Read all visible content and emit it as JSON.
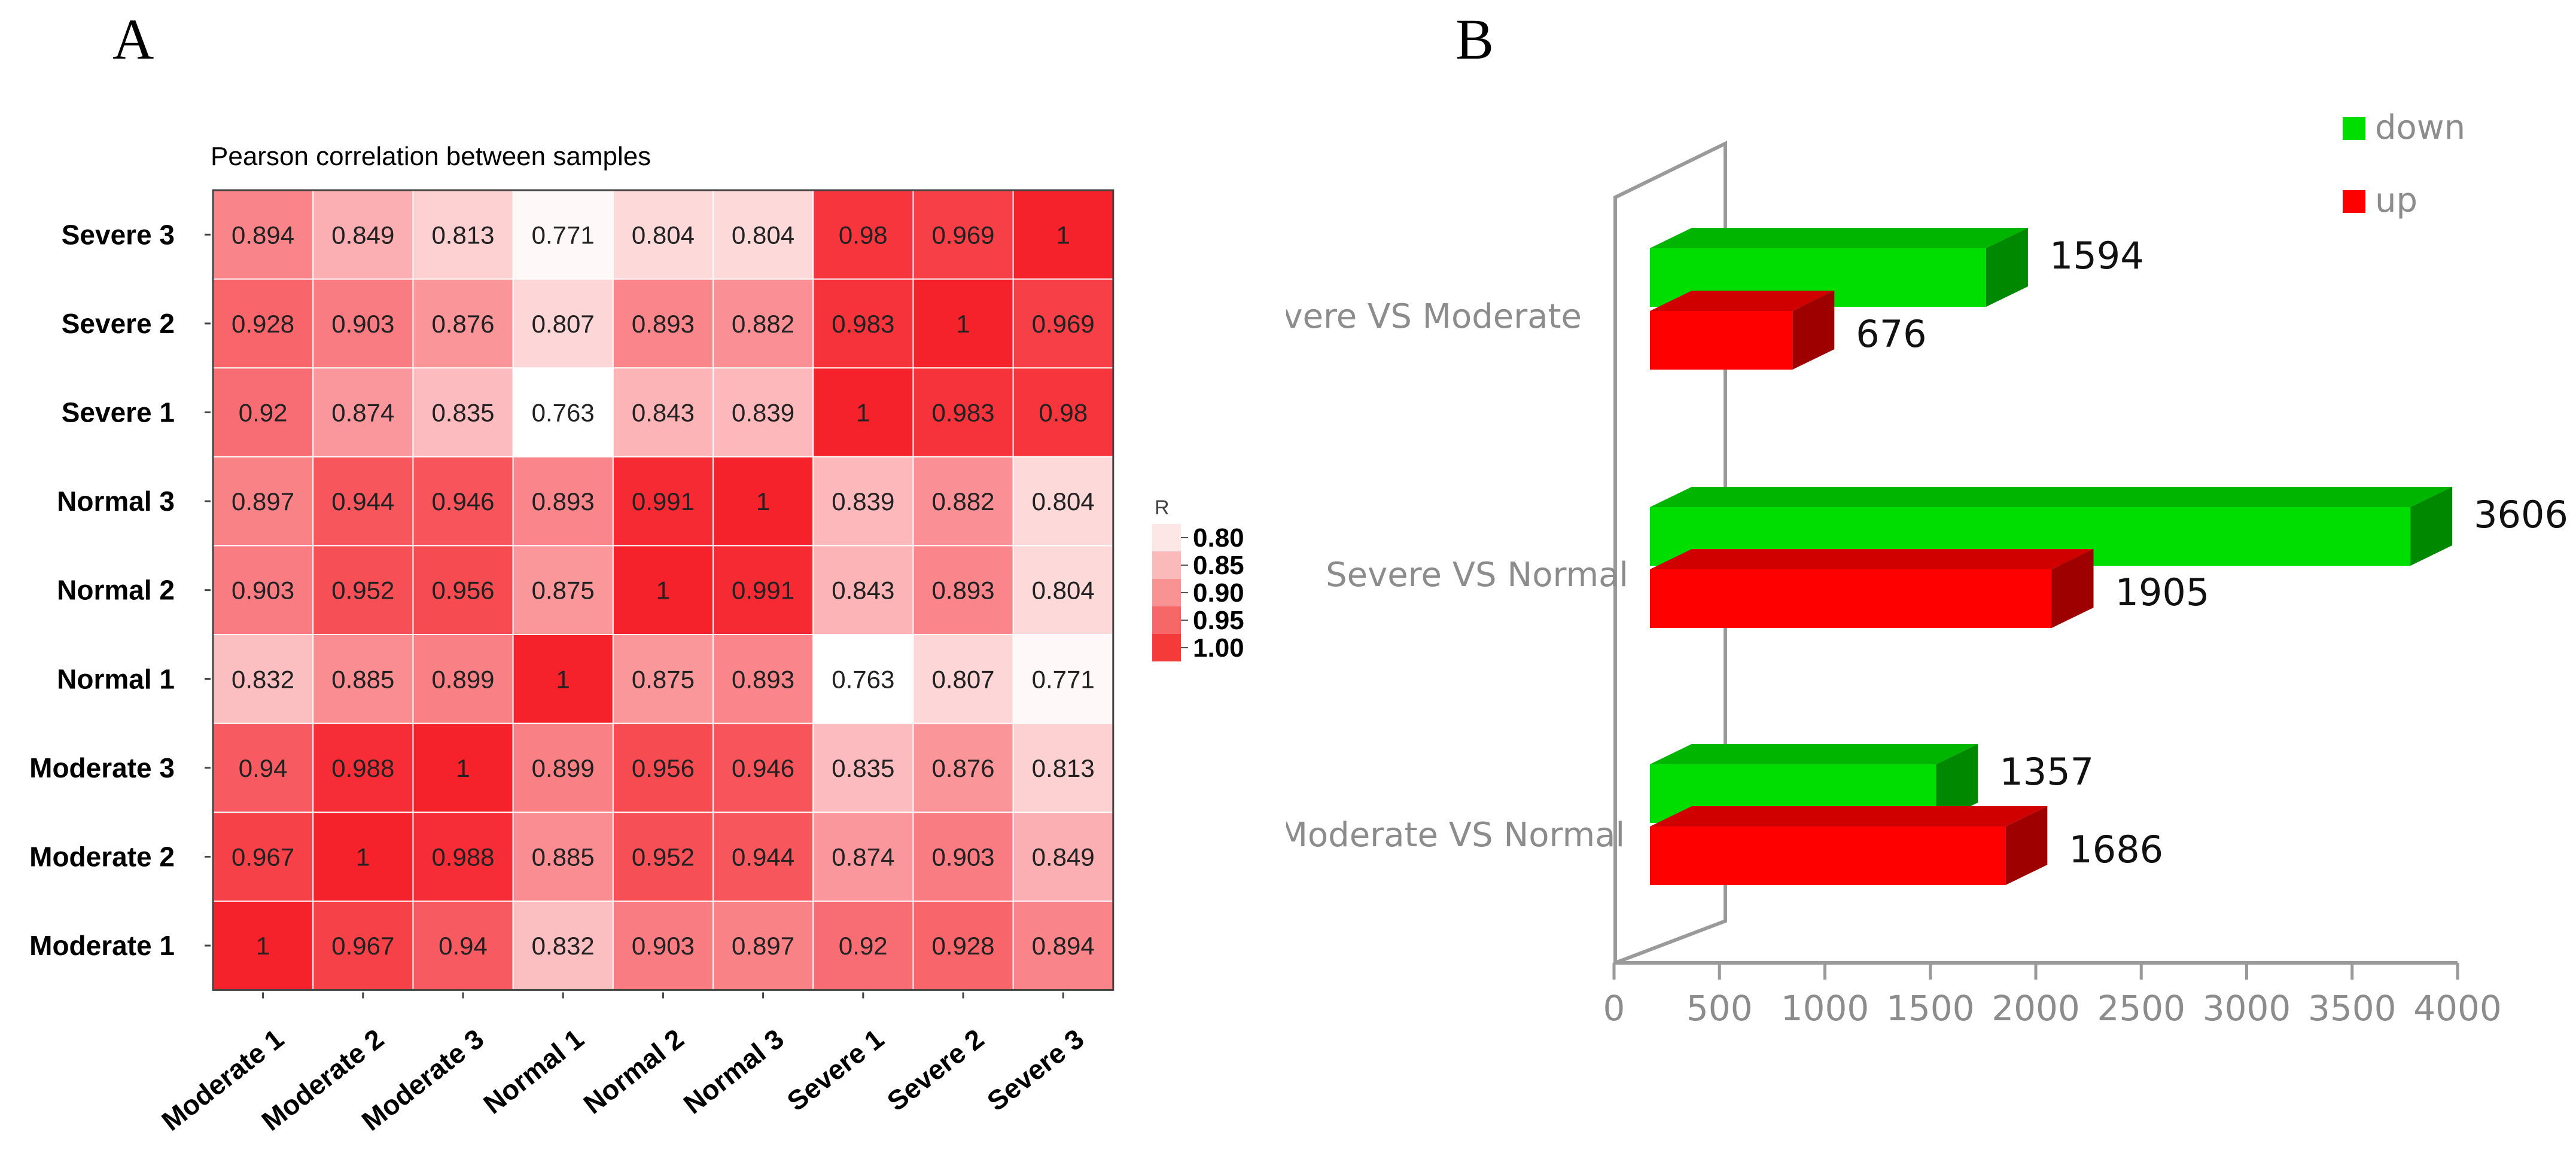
{
  "panel_labels": {
    "a": "A",
    "b": "B"
  },
  "chart_data": [
    {
      "type": "heatmap",
      "title": "Pearson correlation between samples",
      "x_labels": [
        "Moderate 1",
        "Moderate 2",
        "Moderate 3",
        "Normal 1",
        "Normal 2",
        "Normal 3",
        "Severe 1",
        "Severe 2",
        "Severe 3"
      ],
      "y_labels": [
        "Severe 3",
        "Severe 2",
        "Severe 1",
        "Normal 3",
        "Normal 2",
        "Normal 1",
        "Moderate 3",
        "Moderate 2",
        "Moderate 1"
      ],
      "values": [
        [
          "0.894",
          "0.849",
          "0.813",
          "0.771",
          "0.804",
          "0.804",
          "0.98",
          "0.969",
          "1"
        ],
        [
          "0.928",
          "0.903",
          "0.876",
          "0.807",
          "0.893",
          "0.882",
          "0.983",
          "1",
          "0.969"
        ],
        [
          "0.92",
          "0.874",
          "0.835",
          "0.763",
          "0.843",
          "0.839",
          "1",
          "0.983",
          "0.98"
        ],
        [
          "0.897",
          "0.944",
          "0.946",
          "0.893",
          "0.991",
          "1",
          "0.839",
          "0.882",
          "0.804"
        ],
        [
          "0.903",
          "0.952",
          "0.956",
          "0.875",
          "1",
          "0.991",
          "0.843",
          "0.893",
          "0.804"
        ],
        [
          "0.832",
          "0.885",
          "0.899",
          "1",
          "0.875",
          "0.893",
          "0.763",
          "0.807",
          "0.771"
        ],
        [
          "0.94",
          "0.988",
          "1",
          "0.899",
          "0.956",
          "0.946",
          "0.835",
          "0.876",
          "0.813"
        ],
        [
          "0.967",
          "1",
          "0.988",
          "0.885",
          "0.952",
          "0.944",
          "0.874",
          "0.903",
          "0.849"
        ],
        [
          "1",
          "0.967",
          "0.94",
          "0.832",
          "0.903",
          "0.897",
          "0.92",
          "0.928",
          "0.894"
        ]
      ],
      "color_min": "#ffffff",
      "color_max": "#f5222b",
      "value_range": [
        0.763,
        1
      ],
      "legend": {
        "title": "R",
        "ticks": [
          "0.80",
          "0.85",
          "0.90",
          "0.95",
          "1.00"
        ],
        "colors": [
          "#fde6e6",
          "#fbbaba",
          "#f99292",
          "#f66767",
          "#f53a3a"
        ]
      }
    },
    {
      "type": "bar",
      "orientation": "horizontal",
      "style": "3d",
      "categories": [
        "Severe VS Moderate",
        "Severe VS Normal",
        "Moderate VS Normal"
      ],
      "series": [
        {
          "name": "down",
          "color": "#00dd00",
          "values": [
            1594,
            3606,
            1357
          ]
        },
        {
          "name": "up",
          "color": "#ff0000",
          "values": [
            676,
            1905,
            1686
          ]
        }
      ],
      "value_labels": {
        "down": [
          "1594",
          "3606",
          "1357"
        ],
        "up": [
          "676",
          "1905",
          "1686"
        ]
      },
      "xlim": [
        0,
        4000
      ],
      "x_ticks": [
        "0",
        "500",
        "1000",
        "1500",
        "2000",
        "2500",
        "3000",
        "3500",
        "4000"
      ],
      "legend": {
        "position": "top-right",
        "entries": [
          "down",
          "up"
        ]
      }
    }
  ]
}
